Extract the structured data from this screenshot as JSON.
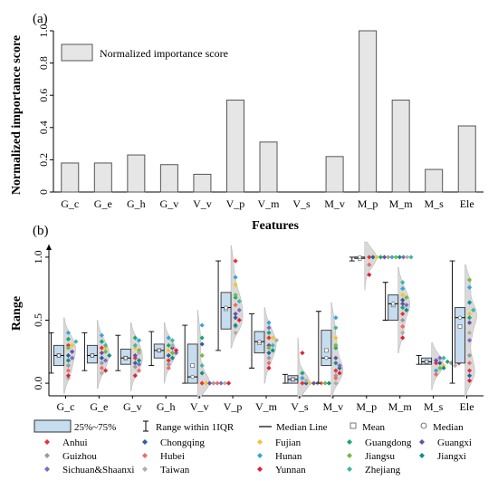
{
  "panel_a": {
    "label": "(a)",
    "ylabel": "Normalized importance score",
    "xlabel": "Features",
    "legend": "Normalized importance score"
  },
  "panel_b": {
    "label": "(b)",
    "ylabel": "Range"
  },
  "legend_b": {
    "box": "25%~75%",
    "whisker": "Range within 1IQR",
    "median_line": "Median Line",
    "mean": "Mean",
    "median": "Median"
  },
  "colors": {
    "bar_fill": "#e6e6e6",
    "bar_stroke": "#555555",
    "box_fill": "#c6dcef",
    "box_stroke": "#333333",
    "violin_fill": "#d9d9d9"
  },
  "chart_data": [
    {
      "type": "bar",
      "title": "",
      "xlabel": "Features",
      "ylabel": "Normalized importance score",
      "ylim": [
        0,
        1.0
      ],
      "yticks": [
        "0",
        "0.2",
        "0.4",
        "0.6",
        "0.8",
        "1.0"
      ],
      "categories": [
        "G_c",
        "G_e",
        "G_h",
        "G_v",
        "V_v",
        "V_p",
        "V_m",
        "V_s",
        "M_v",
        "M_p",
        "M_m",
        "M_s",
        "Ele"
      ],
      "series": [
        {
          "name": "Normalized importance score",
          "values": [
            0.18,
            0.18,
            0.23,
            0.17,
            0.11,
            0.57,
            0.31,
            0.0,
            0.22,
            1.0,
            0.57,
            0.14,
            0.41
          ]
        }
      ],
      "grid": false,
      "legend": "top-left"
    },
    {
      "type": "box",
      "title": "",
      "ylabel": "Range",
      "ylim": [
        -0.1,
        1.1
      ],
      "yticks": [
        "0.0",
        "0.5",
        "1.0"
      ],
      "categories": [
        "G_c",
        "G_e",
        "G_v",
        "G_h",
        "V_v",
        "V_p",
        "V_m",
        "V_s",
        "M_v",
        "M_p",
        "M_m",
        "M_s",
        "Ele"
      ],
      "boxes": [
        {
          "q1": 0.14,
          "median": 0.22,
          "q3": 0.3,
          "whisker_low": 0.08,
          "whisker_high": 0.4,
          "mean": 0.22
        },
        {
          "q1": 0.16,
          "median": 0.22,
          "q3": 0.3,
          "whisker_low": 0.1,
          "whisker_high": 0.4,
          "mean": 0.22
        },
        {
          "q1": 0.15,
          "median": 0.2,
          "q3": 0.27,
          "whisker_low": 0.1,
          "whisker_high": 0.38,
          "mean": 0.2
        },
        {
          "q1": 0.2,
          "median": 0.26,
          "q3": 0.31,
          "whisker_low": 0.14,
          "whisker_high": 0.41,
          "mean": 0.26
        },
        {
          "q1": 0.0,
          "median": 0.05,
          "q3": 0.31,
          "whisker_low": 0.0,
          "whisker_high": 0.46,
          "mean": 0.14
        },
        {
          "q1": 0.43,
          "median": 0.6,
          "q3": 0.72,
          "whisker_low": 0.26,
          "whisker_high": 0.97,
          "mean": 0.59
        },
        {
          "q1": 0.24,
          "median": 0.33,
          "q3": 0.41,
          "whisker_low": 0.12,
          "whisker_high": 0.55,
          "mean": 0.32
        },
        {
          "q1": 0.0,
          "median": 0.03,
          "q3": 0.06,
          "whisker_low": 0.0,
          "whisker_high": 0.07,
          "mean": 0.03
        },
        {
          "q1": 0.14,
          "median": 0.2,
          "q3": 0.42,
          "whisker_low": 0.0,
          "whisker_high": 0.57,
          "mean": 0.26
        },
        {
          "q1": 1.0,
          "median": 1.0,
          "q3": 1.0,
          "whisker_low": 0.97,
          "whisker_high": 1.0,
          "mean": 0.99
        },
        {
          "q1": 0.5,
          "median": 0.63,
          "q3": 0.7,
          "whisker_low": 0.5,
          "whisker_high": 0.8,
          "mean": 0.62
        },
        {
          "q1": 0.15,
          "median": 0.17,
          "q3": 0.2,
          "whisker_low": 0.15,
          "whisker_high": 0.22,
          "mean": 0.17
        },
        {
          "q1": 0.16,
          "median": 0.52,
          "q3": 0.6,
          "whisker_low": 0.0,
          "whisker_high": 0.97,
          "mean": 0.45
        }
      ],
      "series": [
        {
          "name": "Anhui",
          "color": "#e8303b",
          "values": [
            0.3,
            0.28,
            0.2,
            0.18,
            0.0,
            0.97,
            0.36,
            0.0,
            0.1,
            1.0,
            0.55,
            0.16,
            0.1
          ]
        },
        {
          "name": "Chongqing",
          "color": "#2c5f9e",
          "values": [
            0.22,
            0.2,
            0.16,
            0.22,
            0.31,
            0.52,
            0.24,
            0.0,
            0.12,
            1.0,
            0.66,
            0.16,
            0.06
          ]
        },
        {
          "name": "Fujian",
          "color": "#f4c430",
          "values": [
            0.3,
            0.28,
            0.28,
            0.26,
            0.0,
            0.78,
            0.36,
            0.0,
            0.36,
            1.0,
            0.7,
            0.14,
            0.55
          ]
        },
        {
          "name": "Guangdong",
          "color": "#1aa57a",
          "values": [
            0.35,
            0.33,
            0.36,
            0.3,
            0.36,
            0.68,
            0.4,
            0.08,
            0.28,
            1.0,
            0.6,
            0.17,
            0.52
          ]
        },
        {
          "name": "Guangxi",
          "color": "#6b4da8",
          "values": [
            0.25,
            0.24,
            0.22,
            0.28,
            0.0,
            0.55,
            0.3,
            0.0,
            0.2,
            1.0,
            0.63,
            0.18,
            0.48
          ]
        },
        {
          "name": "Guizhou",
          "color": "#9a9a9a",
          "values": [
            0.14,
            0.16,
            0.13,
            0.15,
            0.0,
            0.45,
            0.2,
            0.0,
            0.06,
            1.0,
            0.5,
            0.16,
            0.22
          ]
        },
        {
          "name": "Hubei",
          "color": "#f06a6a",
          "values": [
            0.1,
            0.12,
            0.1,
            0.12,
            0.0,
            0.62,
            0.16,
            0.0,
            0.04,
            0.94,
            0.45,
            0.07,
            0.16
          ]
        },
        {
          "name": "Hunan",
          "color": "#37a3dd",
          "values": [
            0.4,
            0.38,
            0.34,
            0.36,
            0.46,
            0.84,
            0.48,
            0.04,
            0.52,
            1.0,
            0.75,
            0.1,
            0.76
          ]
        },
        {
          "name": "Jiangsu",
          "color": "#77b843",
          "values": [
            0.28,
            0.25,
            0.26,
            0.24,
            0.22,
            0.7,
            0.28,
            0.0,
            0.3,
            1.0,
            0.68,
            0.12,
            0.82
          ]
        },
        {
          "name": "Jiangxi",
          "color": "#0d8f8a",
          "values": [
            0.18,
            0.22,
            0.18,
            0.2,
            0.08,
            0.46,
            0.26,
            0.0,
            0.16,
            1.0,
            0.58,
            0.12,
            0.64
          ]
        },
        {
          "name": "Sichuan&Shaanxi",
          "color": "#7b6bc5",
          "values": [
            0.2,
            0.18,
            0.15,
            0.24,
            0.0,
            0.58,
            0.44,
            0.0,
            0.14,
            1.0,
            0.62,
            0.2,
            0.34
          ]
        },
        {
          "name": "Taiwan",
          "color": "#b0b0a0",
          "values": [
            0.04,
            0.08,
            0.24,
            0.3,
            0.0,
            0.4,
            0.34,
            0.02,
            0.0,
            1.0,
            0.4,
            0.14,
            0.4
          ]
        },
        {
          "name": "Yunnan",
          "color": "#e0203a",
          "values": [
            0.06,
            0.1,
            0.06,
            0.26,
            0.0,
            0.5,
            0.12,
            0.24,
            0.08,
            0.86,
            0.36,
            0.16,
            0.02
          ]
        },
        {
          "name": "Zhejiang",
          "color": "#41b6a6",
          "values": [
            0.33,
            0.3,
            0.3,
            0.34,
            0.14,
            0.65,
            0.3,
            0.0,
            0.44,
            1.0,
            0.8,
            0.2,
            0.58
          ]
        }
      ],
      "legend": "bottom"
    }
  ]
}
